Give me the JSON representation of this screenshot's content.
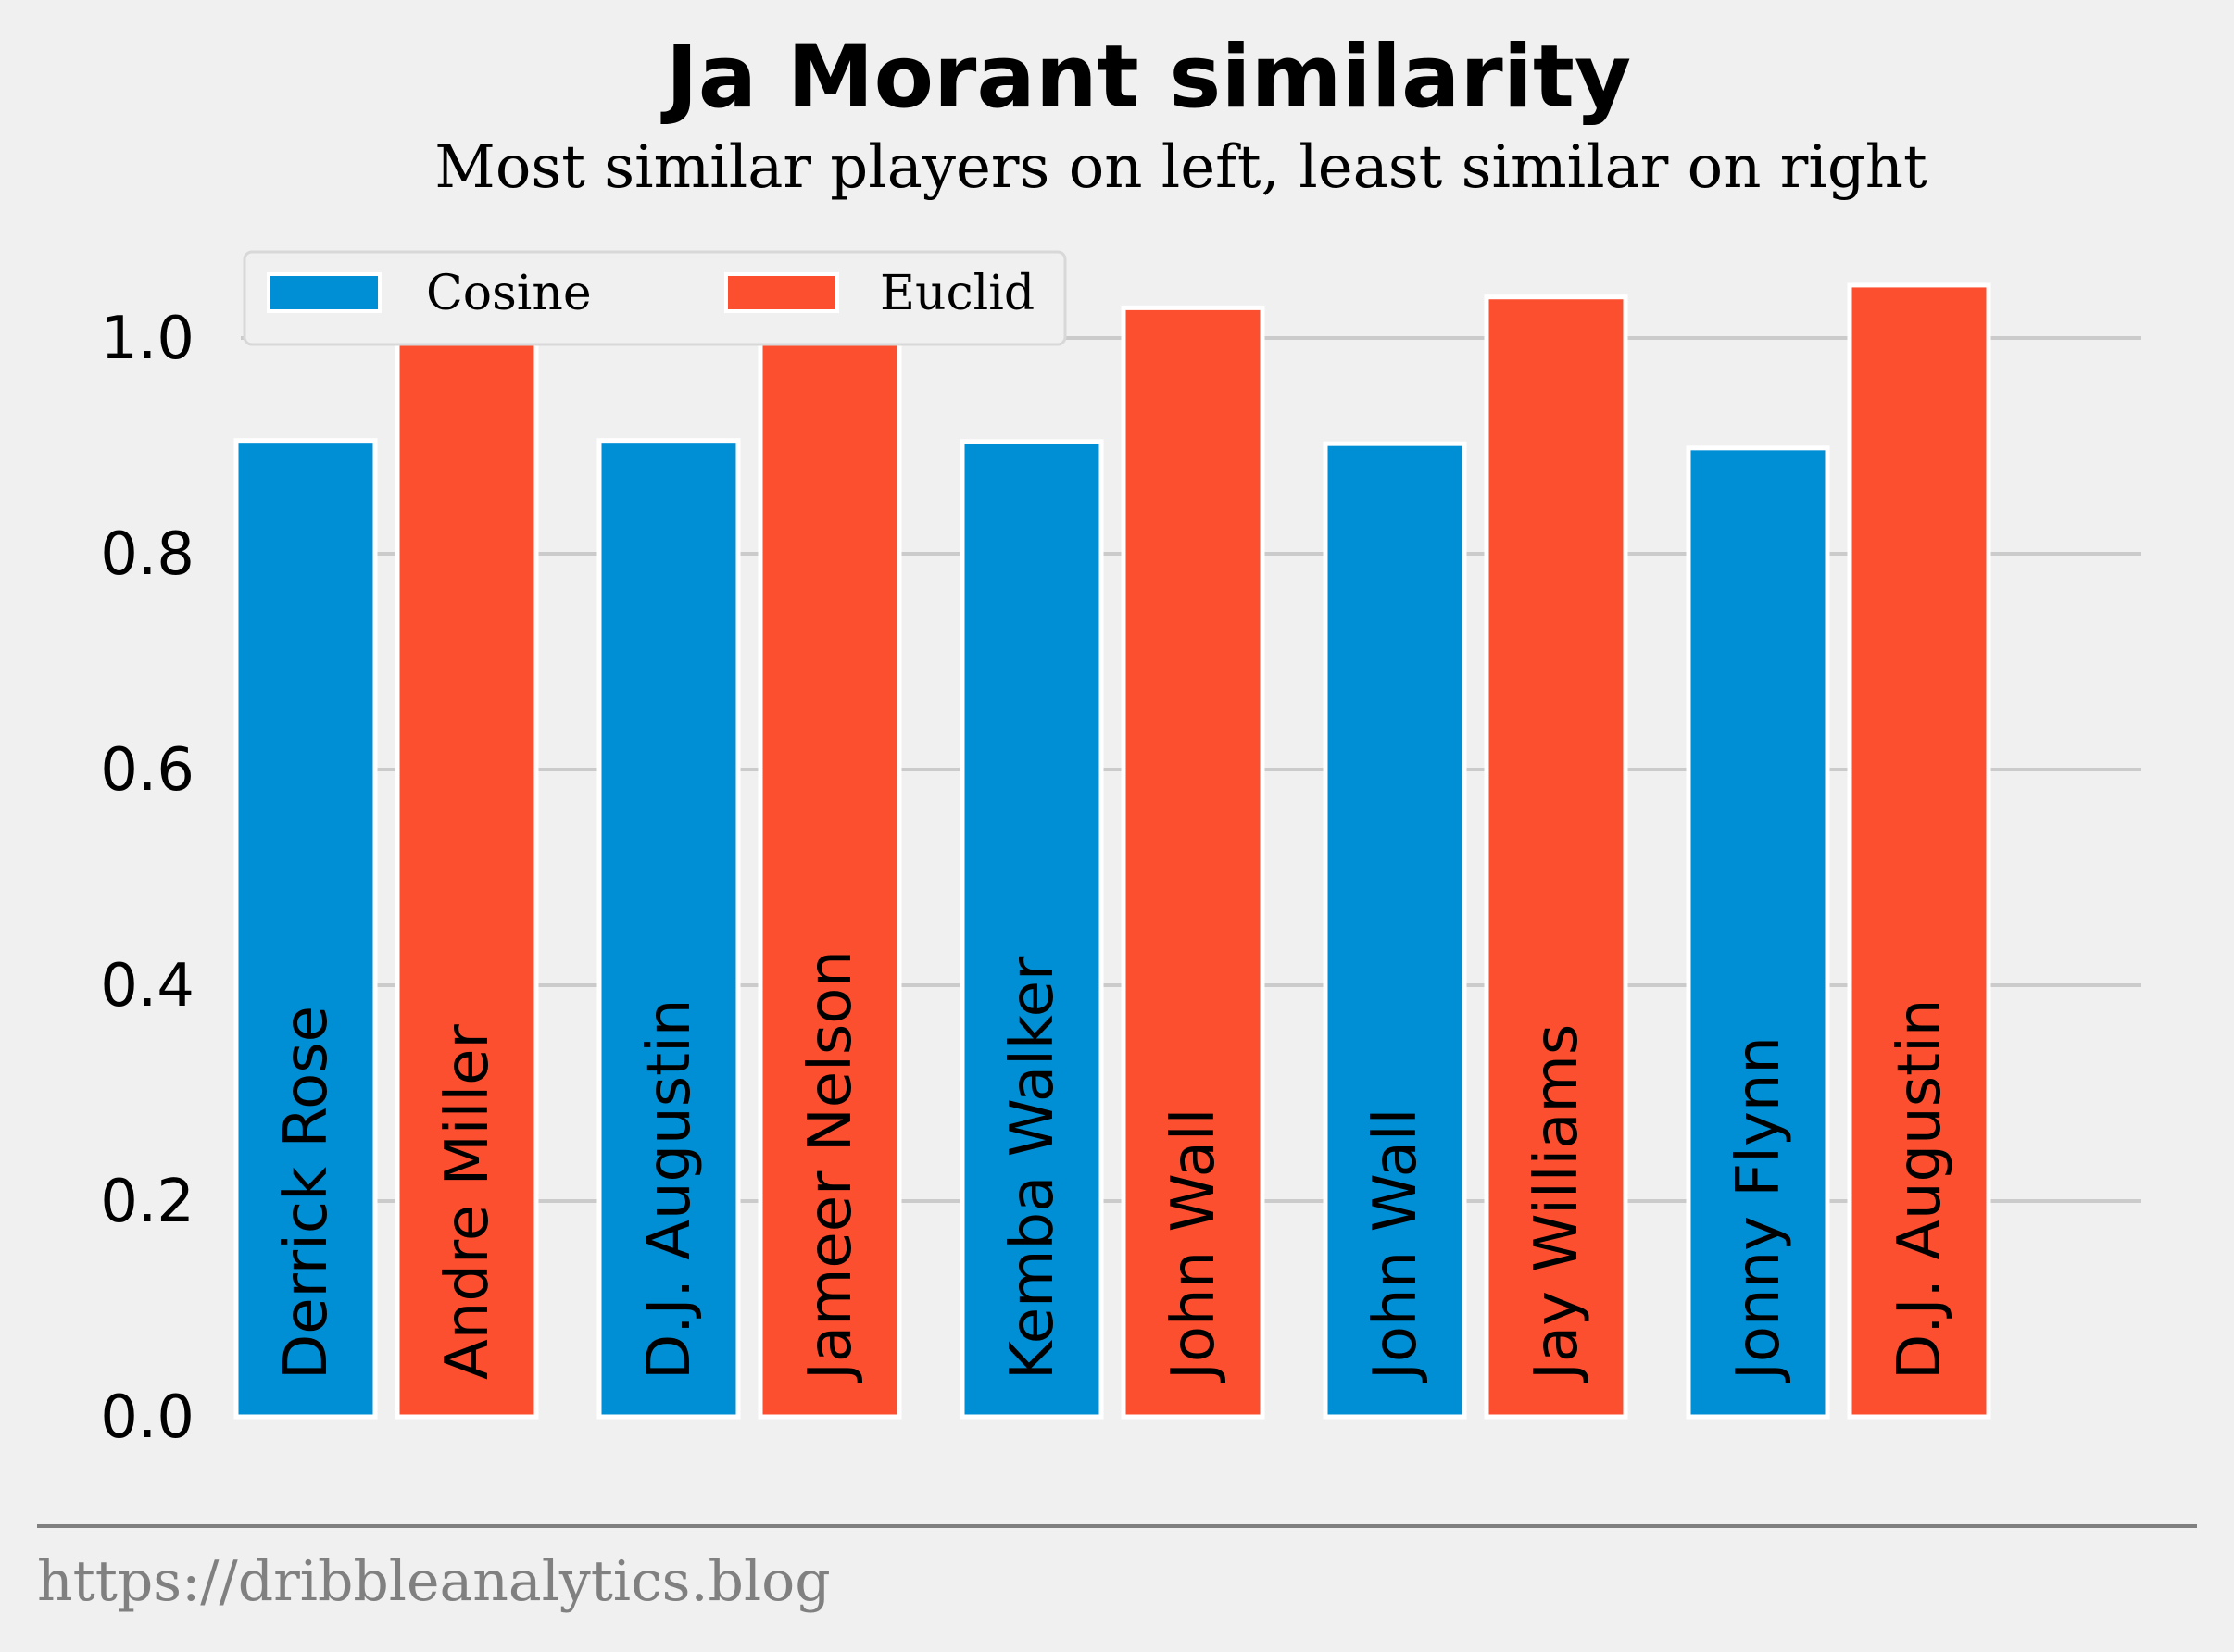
{
  "chart_data": {
    "type": "bar",
    "title": "Ja Morant similarity",
    "subtitle": "Most similar players on left, least similar on right",
    "ylim": [
      0,
      1.08
    ],
    "yticks": [
      "0.0",
      "0.2",
      "0.4",
      "0.6",
      "0.8",
      "1.0"
    ],
    "grid": true,
    "legend_position": "top-left",
    "legend_columns": 2,
    "series": [
      {
        "name": "Cosine",
        "color": "#008fd5",
        "values": [
          0.905,
          0.905,
          0.904,
          0.902,
          0.898
        ],
        "labels": [
          "Derrick Rose",
          "D.J. Augustin",
          "Kemba Walker",
          "John Wall",
          "Jonny Flynn"
        ]
      },
      {
        "name": "Euclid",
        "color": "#fc4f30",
        "values": [
          1.0,
          1.012,
          1.028,
          1.038,
          1.049
        ],
        "labels": [
          "Andre Miller",
          "Jameer Nelson",
          "John Wall",
          "Jay Williams",
          "D.J. Augustin"
        ]
      }
    ]
  },
  "footer": "https://dribbleanalytics.blog"
}
